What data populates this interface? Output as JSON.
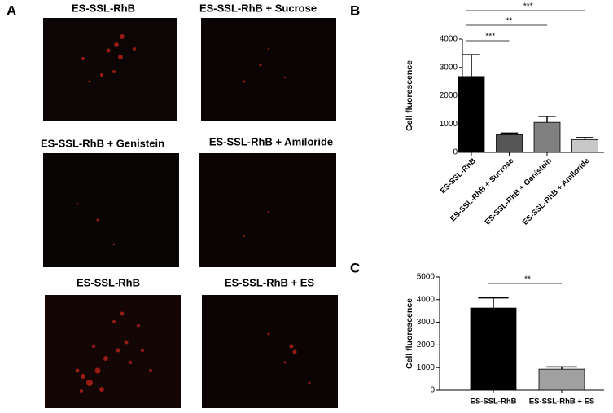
{
  "panel_labels": [
    "A",
    "B",
    "C"
  ],
  "images": [
    {
      "title": "ES-SSL-RhB"
    },
    {
      "title": "ES-SSL-RhB + Sucrose"
    },
    {
      "title": "ES-SSL-RhB + Genistein"
    },
    {
      "title": "ES-SSL-RhB + Amiloride"
    },
    {
      "title": "ES-SSL-RhB"
    },
    {
      "title": "ES-SSL-RhB + ES"
    }
  ],
  "chart_data": [
    {
      "type": "bar",
      "ylabel": "Cell fluorescence",
      "categories": [
        "ES-SSL-RhB",
        "ES-SSL-RhB + Sucrose",
        "ES-SSL-RhB + Genistein",
        "ES-SSL-RhB + Amiloride"
      ],
      "values": [
        2680,
        620,
        1060,
        450
      ],
      "errors": [
        770,
        60,
        210,
        70
      ],
      "colors": [
        "#000000",
        "#555555",
        "#808080",
        "#c8c8c8"
      ],
      "ylim": [
        0,
        4000
      ],
      "yticks": [
        0,
        1000,
        2000,
        3000,
        4000
      ],
      "significance": [
        "***",
        "**",
        "***"
      ]
    },
    {
      "type": "bar",
      "ylabel": "Cell fluorescence",
      "categories": [
        "ES-SSL-RhB",
        "ES-SSL-RhB + ES"
      ],
      "values": [
        3630,
        930
      ],
      "errors": [
        450,
        100
      ],
      "colors": [
        "#000000",
        "#a0a0a0"
      ],
      "ylim": [
        0,
        5000
      ],
      "yticks": [
        0,
        1000,
        2000,
        3000,
        4000,
        5000
      ],
      "significance": [
        "**"
      ]
    }
  ]
}
